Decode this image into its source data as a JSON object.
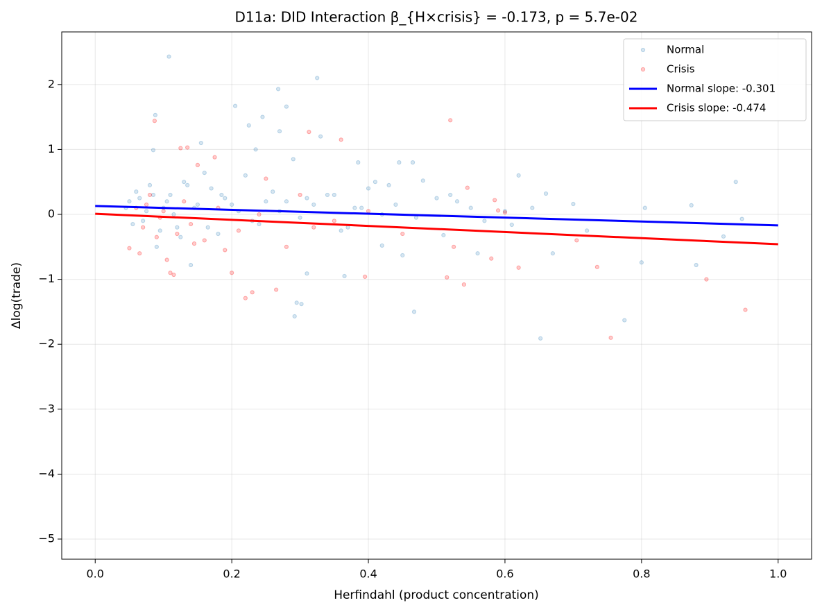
{
  "chart_data": {
    "type": "scatter",
    "title": "D11a: DID Interaction β_{H×crisis} = -0.173, p = 5.7e-02",
    "xlabel": "Herfindahl (product concentration)",
    "ylabel": "Δlog(trade)",
    "xlim": [
      -0.049,
      1.049
    ],
    "ylim": [
      -5.31,
      2.81
    ],
    "xticks": [
      {
        "value": 0,
        "label": "0.0"
      },
      {
        "value": 0.2,
        "label": "0.2"
      },
      {
        "value": 0.4,
        "label": "0.4"
      },
      {
        "value": 0.6,
        "label": "0.6"
      },
      {
        "value": 0.8,
        "label": "0.8"
      },
      {
        "value": 1,
        "label": "1.0"
      }
    ],
    "yticks": [
      {
        "value": -5,
        "label": "−5"
      },
      {
        "value": -4,
        "label": "−4"
      },
      {
        "value": -3,
        "label": "−3"
      },
      {
        "value": -2,
        "label": "−2"
      },
      {
        "value": -1,
        "label": "−1"
      },
      0,
      1,
      2
    ],
    "grid": true,
    "legend": "upper right",
    "series": [
      {
        "name": "Normal",
        "type": "scatter",
        "color": "#1f77b4",
        "alpha": 0.18,
        "x": [
          0.108,
          0.325,
          0.268,
          0.28,
          0.205,
          0.088,
          0.245,
          0.225,
          0.27,
          0.155,
          0.235,
          0.085,
          0.29,
          0.385,
          0.445,
          0.465,
          0.41,
          0.43,
          0.48,
          0.62,
          0.66,
          0.7,
          0.805,
          0.873,
          0.938,
          0.947,
          0.92,
          0.88,
          0.8,
          0.775,
          0.652,
          0.467,
          0.292,
          0.295,
          0.302,
          0.31,
          0.365,
          0.42,
          0.45,
          0.51,
          0.56,
          0.67,
          0.61,
          0.52,
          0.55,
          0.5,
          0.35,
          0.33,
          0.16,
          0.14,
          0.09,
          0.05,
          0.06,
          0.07,
          0.08,
          0.1,
          0.11,
          0.12,
          0.13,
          0.15,
          0.17,
          0.18,
          0.19,
          0.21,
          0.22,
          0.24,
          0.26,
          0.28,
          0.3,
          0.32,
          0.34,
          0.36,
          0.38,
          0.4,
          0.42,
          0.045,
          0.055,
          0.065,
          0.075,
          0.085,
          0.095,
          0.105,
          0.115,
          0.125,
          0.135,
          0.145,
          0.165,
          0.185,
          0.2,
          0.23,
          0.25,
          0.27,
          0.31,
          0.37,
          0.39,
          0.44,
          0.47,
          0.53,
          0.57,
          0.6,
          0.64,
          0.72
        ],
        "values": [
          2.43,
          2.1,
          1.93,
          1.66,
          1.67,
          1.53,
          1.5,
          1.37,
          1.28,
          1.1,
          1.0,
          0.99,
          0.85,
          0.8,
          0.8,
          0.8,
          0.5,
          0.45,
          0.52,
          0.6,
          0.32,
          0.16,
          0.1,
          0.14,
          0.5,
          -0.07,
          -0.34,
          -0.78,
          -0.74,
          -1.63,
          -1.91,
          -1.5,
          -1.57,
          -1.36,
          -1.38,
          -0.91,
          -0.95,
          -0.48,
          -0.63,
          -0.32,
          -0.6,
          -0.6,
          -0.16,
          0.3,
          0.1,
          0.25,
          0.3,
          1.2,
          0.64,
          -0.78,
          -0.5,
          0.2,
          0.35,
          -0.1,
          0.45,
          0.1,
          0.3,
          -0.2,
          0.5,
          0.15,
          0.4,
          -0.3,
          0.25,
          0.05,
          0.6,
          -0.15,
          0.35,
          0.2,
          -0.05,
          0.15,
          0.3,
          -0.25,
          0.1,
          0.4,
          0.0,
          0.1,
          -0.15,
          0.25,
          0.05,
          0.3,
          -0.25,
          0.2,
          0.0,
          -0.35,
          0.45,
          0.1,
          -0.2,
          0.3,
          0.15,
          -0.1,
          0.2,
          0.05,
          0.25,
          -0.2,
          0.1,
          0.15,
          -0.05,
          0.2,
          -0.1,
          0.05,
          0.1,
          -0.25
        ]
      },
      {
        "name": "Crisis",
        "type": "scatter",
        "color": "#ff0000",
        "alpha": 0.2,
        "x": [
          0.087,
          0.52,
          0.313,
          0.36,
          0.135,
          0.125,
          0.115,
          0.11,
          0.22,
          0.23,
          0.265,
          0.395,
          0.515,
          0.54,
          0.735,
          0.62,
          0.755,
          0.895,
          0.952,
          0.705,
          0.58,
          0.585,
          0.59,
          0.545,
          0.6,
          0.525,
          0.2,
          0.19,
          0.15,
          0.175,
          0.25,
          0.3,
          0.105,
          0.065,
          0.05,
          0.06,
          0.07,
          0.08,
          0.09,
          0.1,
          0.12,
          0.13,
          0.14,
          0.16,
          0.18,
          0.21,
          0.24,
          0.28,
          0.32,
          0.35,
          0.4,
          0.45,
          0.075,
          0.095,
          0.145
        ],
        "values": [
          1.44,
          1.45,
          1.27,
          1.15,
          1.03,
          1.02,
          -0.93,
          -0.9,
          -1.29,
          -1.2,
          -1.16,
          -0.96,
          -0.97,
          -1.08,
          -0.81,
          -0.82,
          -1.9,
          -1.0,
          -1.47,
          -0.4,
          -0.68,
          0.22,
          0.06,
          0.41,
          0.03,
          -0.5,
          -0.9,
          -0.55,
          0.76,
          0.88,
          0.55,
          0.3,
          -0.7,
          -0.6,
          -0.52,
          0.1,
          -0.2,
          0.3,
          -0.35,
          0.05,
          -0.3,
          0.2,
          -0.15,
          -0.4,
          0.1,
          -0.25,
          0.0,
          -0.5,
          -0.2,
          -0.1,
          0.05,
          -0.3,
          0.15,
          -0.05,
          -0.45
        ]
      },
      {
        "name": "Normal slope: -0.301",
        "type": "line",
        "color": "#0000ff",
        "x": [
          0,
          1
        ],
        "values": [
          0.13,
          -0.17
        ]
      },
      {
        "name": "Crisis slope: -0.474",
        "type": "line",
        "color": "#ff0000",
        "x": [
          0,
          1
        ],
        "values": [
          0.01,
          -0.46
        ]
      }
    ]
  }
}
